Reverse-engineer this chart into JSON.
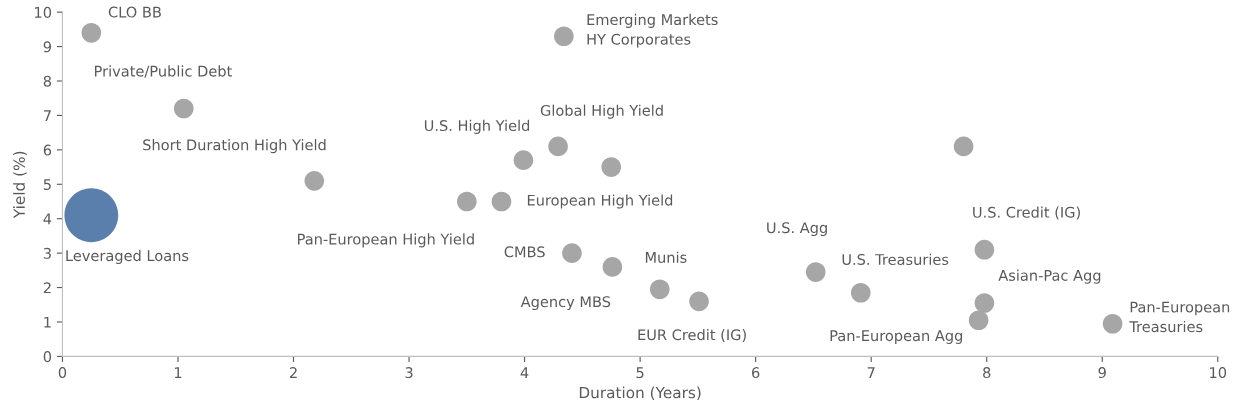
{
  "chart_data": {
    "type": "scatter",
    "xlabel": "Duration (Years)",
    "ylabel": "Yield (%)",
    "xlim": [
      0,
      10
    ],
    "xticks": [
      0,
      1,
      2,
      3,
      4,
      5,
      6,
      7,
      8,
      9,
      10
    ],
    "ylim": [
      0,
      10
    ],
    "yticks": [
      0,
      1,
      2,
      3,
      4,
      5,
      6,
      7,
      8,
      9,
      10
    ],
    "grid": false,
    "legend": false,
    "marker": "circle",
    "series": [
      {
        "color": "#a6a6a6",
        "x": [
          0.25,
          1.05,
          2.18,
          3.5,
          3.8,
          3.99,
          4.29,
          4.34,
          4.75,
          7.8,
          4.41,
          4.76,
          5.17,
          5.51,
          6.52,
          6.91,
          7.98,
          7.98,
          7.93,
          9.09
        ],
        "values": [
          9.4,
          7.2,
          5.1,
          4.5,
          4.5,
          5.7,
          6.1,
          9.3,
          5.5,
          6.1,
          3.0,
          2.6,
          1.95,
          1.6,
          2.45,
          1.85,
          3.1,
          1.55,
          1.05,
          0.95
        ]
      },
      {
        "color": "#5b7fad",
        "x": [
          0.25
        ],
        "values": [
          4.1
        ]
      }
    ],
    "annotations": [
      {
        "text": "CLO BB",
        "x": 0.25,
        "y": 9.4
      },
      {
        "text": "Private/Public Debt",
        "x": 1.05,
        "y": 7.2
      },
      {
        "text": "Short Duration High Yield",
        "x": 2.18,
        "y": 5.1
      },
      {
        "text": "Pan-European High Yield",
        "x": 3.5,
        "y": 4.5
      },
      {
        "text": "European High Yield",
        "x": 3.8,
        "y": 4.5
      },
      {
        "text": "U.S. High Yield",
        "x": 3.99,
        "y": 5.7
      },
      {
        "text": "Global High Yield",
        "x": 4.29,
        "y": 6.1
      },
      {
        "text": "Emerging Markets\nHY Corporates",
        "x": 4.34,
        "y": 9.3
      },
      {
        "text": "CMBS",
        "x": 4.41,
        "y": 3.0
      },
      {
        "text": "Agency MBS",
        "x": 4.76,
        "y": 2.6
      },
      {
        "text": "Munis",
        "x": 5.17,
        "y": 1.95
      },
      {
        "text": "EUR Credit (IG)",
        "x": 5.51,
        "y": 1.6
      },
      {
        "text": "U.S. Agg",
        "x": 6.52,
        "y": 2.45
      },
      {
        "text": "U.S. Treasuries",
        "x": 6.91,
        "y": 1.85
      },
      {
        "text": "U.S. Credit (IG)",
        "x": 7.98,
        "y": 3.1
      },
      {
        "text": "Asian-Pac Agg",
        "x": 7.98,
        "y": 1.55
      },
      {
        "text": "Pan-European Agg",
        "x": 7.93,
        "y": 1.05
      },
      {
        "text": "Pan-European\nTreasuries",
        "x": 9.09,
        "y": 0.95
      },
      {
        "text": "Leveraged Loans",
        "x": 0.25,
        "y": 4.1
      }
    ]
  }
}
